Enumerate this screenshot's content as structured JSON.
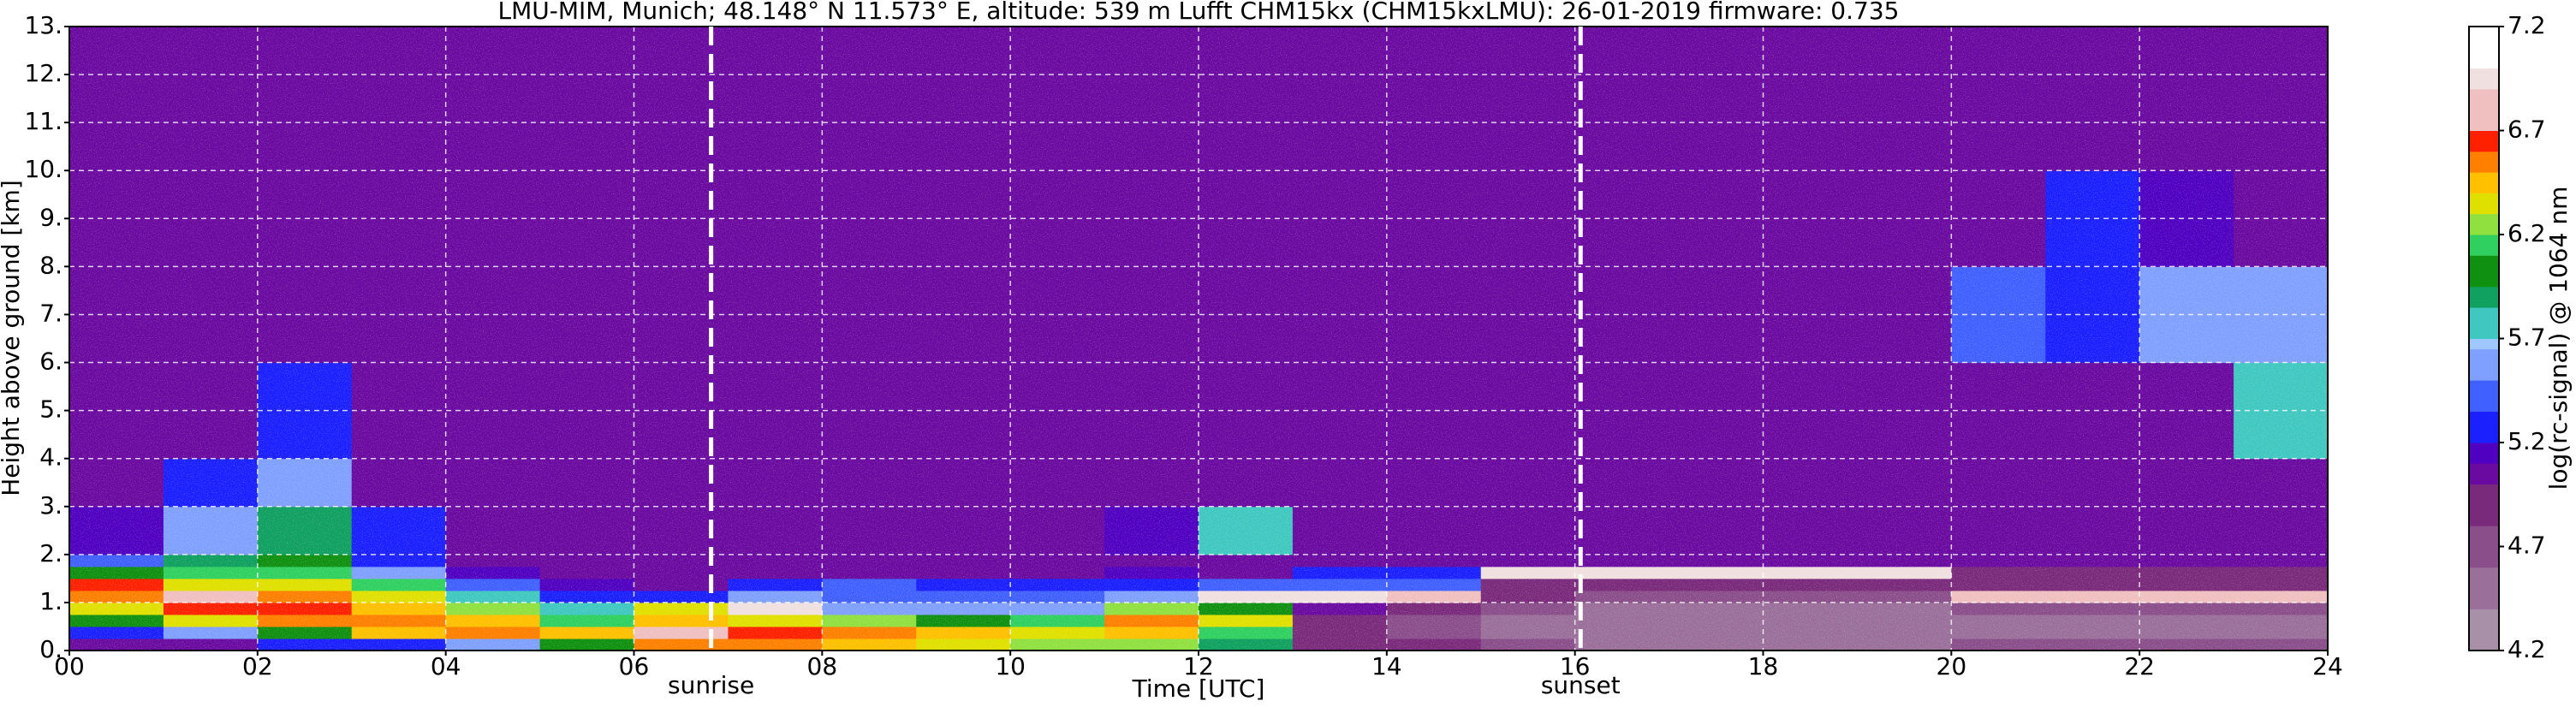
{
  "chart_data": {
    "type": "heatmap",
    "title": "LMU-MIM, Munich; 48.148° N 11.573° E, altitude: 539 m    Lufft CHM15kx (CHM15kxLMU): 26-01-2019    firmware: 0.735",
    "xlabel": "Time [UTC]",
    "ylabel": "Height above ground [km]",
    "colorbar_label": "log(rc-signal) @ 1064 nm",
    "xlim": [
      0,
      24
    ],
    "ylim": [
      0,
      13
    ],
    "xticks": [
      {
        "value": 0,
        "label": "00"
      },
      {
        "value": 2,
        "label": "02"
      },
      {
        "value": 4,
        "label": "04"
      },
      {
        "value": 6,
        "label": "06"
      },
      {
        "value": 8,
        "label": "08"
      },
      {
        "value": 10,
        "label": "10"
      },
      {
        "value": 12,
        "label": "12"
      },
      {
        "value": 14,
        "label": "14"
      },
      {
        "value": 16,
        "label": "16"
      },
      {
        "value": 18,
        "label": "18"
      },
      {
        "value": 20,
        "label": "20"
      },
      {
        "value": 22,
        "label": "22"
      },
      {
        "value": 24,
        "label": "24"
      }
    ],
    "yticks": [
      {
        "value": 0,
        "label": "0."
      },
      {
        "value": 1,
        "label": "1."
      },
      {
        "value": 2,
        "label": "2."
      },
      {
        "value": 3,
        "label": "3."
      },
      {
        "value": 4,
        "label": "4."
      },
      {
        "value": 5,
        "label": "5."
      },
      {
        "value": 6,
        "label": "6."
      },
      {
        "value": 7,
        "label": "7."
      },
      {
        "value": 8,
        "label": "8."
      },
      {
        "value": 9,
        "label": "9."
      },
      {
        "value": 10,
        "label": "10."
      },
      {
        "value": 11,
        "label": "11."
      },
      {
        "value": 12,
        "label": "12."
      },
      {
        "value": 13,
        "label": "13."
      }
    ],
    "grid": true,
    "clim": [
      4.2,
      7.2
    ],
    "cticks": [
      4.2,
      4.7,
      5.2,
      5.7,
      6.2,
      6.7,
      7.2
    ],
    "colorscale": [
      [
        4.2,
        "#a890a8"
      ],
      [
        4.4,
        "#9a6f9a"
      ],
      [
        4.6,
        "#8a4e8a"
      ],
      [
        4.8,
        "#7a2a7a"
      ],
      [
        5.0,
        "#6a0aa0"
      ],
      [
        5.1,
        "#5000c0"
      ],
      [
        5.2,
        "#1a20ff"
      ],
      [
        5.35,
        "#4060ff"
      ],
      [
        5.5,
        "#80a0ff"
      ],
      [
        5.65,
        "#a0c8ff"
      ],
      [
        5.7,
        "#40c8c0"
      ],
      [
        5.85,
        "#10a060"
      ],
      [
        5.95,
        "#109010"
      ],
      [
        6.1,
        "#30d060"
      ],
      [
        6.2,
        "#90e040"
      ],
      [
        6.3,
        "#e0e000"
      ],
      [
        6.4,
        "#ffc000"
      ],
      [
        6.5,
        "#ff8000"
      ],
      [
        6.6,
        "#ff2000"
      ],
      [
        6.7,
        "#f0c0c0"
      ],
      [
        6.9,
        "#f0e0e0"
      ],
      [
        7.0,
        "#ffffff"
      ]
    ],
    "xbins": [
      0,
      1,
      2,
      3,
      4,
      5,
      6,
      7,
      8,
      9,
      10,
      11,
      12,
      13,
      14,
      15,
      16,
      17,
      18,
      19,
      20,
      21,
      22,
      23,
      24
    ],
    "ybins": [
      0,
      0.25,
      0.5,
      0.75,
      1,
      1.25,
      1.5,
      1.75,
      2,
      3,
      4,
      6,
      8,
      10,
      13
    ],
    "z": [
      [
        5.0,
        5.2,
        6.0,
        6.3,
        6.5,
        6.6,
        6.0,
        5.4,
        5.1,
        5.0,
        5.0,
        5.0,
        5.0,
        5.0
      ],
      [
        5.0,
        5.5,
        6.3,
        6.6,
        6.7,
        6.3,
        6.1,
        5.9,
        5.6,
        5.2,
        5.0,
        5.0,
        5.0,
        5.0
      ],
      [
        5.2,
        6.0,
        6.5,
        6.6,
        6.5,
        6.3,
        6.1,
        6.0,
        5.9,
        5.5,
        5.2,
        5.0,
        5.0,
        5.0
      ],
      [
        5.3,
        6.4,
        6.5,
        6.4,
        6.3,
        6.1,
        5.6,
        5.3,
        5.2,
        5.0,
        5.0,
        5.0,
        5.0,
        5.0
      ],
      [
        5.6,
        6.5,
        6.4,
        6.2,
        5.8,
        5.4,
        5.1,
        5.0,
        5.0,
        5.0,
        5.0,
        5.0,
        5.0,
        5.0
      ],
      [
        6.0,
        6.4,
        6.1,
        5.7,
        5.3,
        5.1,
        5.0,
        5.0,
        5.0,
        5.0,
        5.0,
        5.0,
        5.0,
        5.0
      ],
      [
        6.5,
        6.7,
        6.4,
        6.3,
        5.3,
        5.0,
        5.0,
        5.0,
        5.0,
        5.0,
        5.0,
        5.0,
        5.0,
        5.0
      ],
      [
        6.5,
        6.6,
        6.3,
        6.9,
        5.5,
        5.3,
        5.0,
        5.0,
        5.0,
        5.0,
        5.0,
        5.0,
        5.0,
        5.0
      ],
      [
        6.4,
        6.5,
        6.2,
        5.6,
        5.4,
        5.4,
        5.0,
        5.0,
        5.0,
        5.0,
        5.0,
        5.0,
        5.0,
        5.0
      ],
      [
        6.3,
        6.4,
        6.0,
        5.6,
        5.4,
        5.3,
        5.0,
        5.0,
        5.0,
        5.0,
        5.0,
        5.0,
        5.0,
        5.0
      ],
      [
        6.2,
        6.3,
        6.1,
        5.6,
        5.4,
        5.2,
        5.0,
        5.0,
        5.0,
        5.0,
        5.0,
        5.0,
        5.0,
        5.0
      ],
      [
        6.2,
        6.4,
        6.5,
        6.2,
        5.5,
        5.3,
        5.1,
        5.0,
        5.1,
        5.0,
        5.0,
        5.0,
        5.0,
        5.0
      ],
      [
        5.9,
        6.1,
        6.3,
        6.0,
        6.9,
        5.4,
        5.0,
        5.0,
        5.8,
        5.0,
        5.0,
        5.0,
        5.0,
        5.0
      ],
      [
        4.9,
        4.8,
        4.8,
        5.0,
        6.9,
        5.4,
        5.2,
        5.0,
        5.0,
        5.0,
        5.0,
        5.0,
        5.0,
        5.0
      ],
      [
        4.8,
        4.7,
        4.7,
        4.9,
        6.8,
        5.4,
        5.2,
        5.0,
        5.0,
        5.0,
        5.0,
        5.0,
        5.0,
        5.0
      ],
      [
        4.6,
        4.5,
        4.4,
        4.6,
        4.8,
        4.9,
        6.9,
        5.0,
        5.0,
        5.0,
        5.0,
        5.0,
        5.0,
        5.0
      ],
      [
        4.5,
        4.4,
        4.4,
        4.5,
        4.6,
        4.8,
        6.9,
        5.0,
        5.0,
        5.0,
        5.0,
        5.0,
        5.0,
        5.0
      ],
      [
        4.5,
        4.4,
        4.4,
        4.5,
        4.6,
        4.8,
        6.9,
        5.0,
        5.0,
        5.0,
        5.0,
        5.0,
        5.0,
        5.0
      ],
      [
        4.5,
        4.4,
        4.4,
        4.5,
        4.6,
        4.8,
        6.9,
        5.0,
        5.0,
        5.0,
        5.0,
        5.0,
        5.0,
        5.0
      ],
      [
        4.5,
        4.4,
        4.4,
        4.5,
        4.6,
        4.8,
        6.9,
        5.0,
        5.0,
        5.0,
        5.0,
        5.0,
        5.0,
        5.0
      ],
      [
        4.6,
        4.5,
        4.5,
        4.6,
        6.8,
        4.9,
        4.8,
        5.0,
        5.0,
        5.0,
        5.0,
        5.4,
        5.0,
        5.0
      ],
      [
        4.6,
        4.5,
        4.5,
        4.7,
        6.7,
        4.9,
        4.8,
        5.0,
        5.0,
        5.0,
        5.0,
        5.3,
        5.2,
        5.0
      ],
      [
        4.6,
        4.5,
        4.5,
        4.7,
        6.7,
        4.9,
        4.8,
        5.0,
        5.0,
        5.0,
        5.0,
        5.6,
        5.1,
        5.0
      ],
      [
        4.6,
        4.5,
        4.5,
        4.7,
        6.7,
        4.9,
        4.8,
        5.0,
        5.0,
        5.0,
        5.8,
        5.5,
        5.0,
        5.0
      ]
    ],
    "annotations": [
      {
        "text": "sunrise",
        "x": 6.82
      },
      {
        "text": "sunset",
        "x": 16.06
      }
    ]
  }
}
